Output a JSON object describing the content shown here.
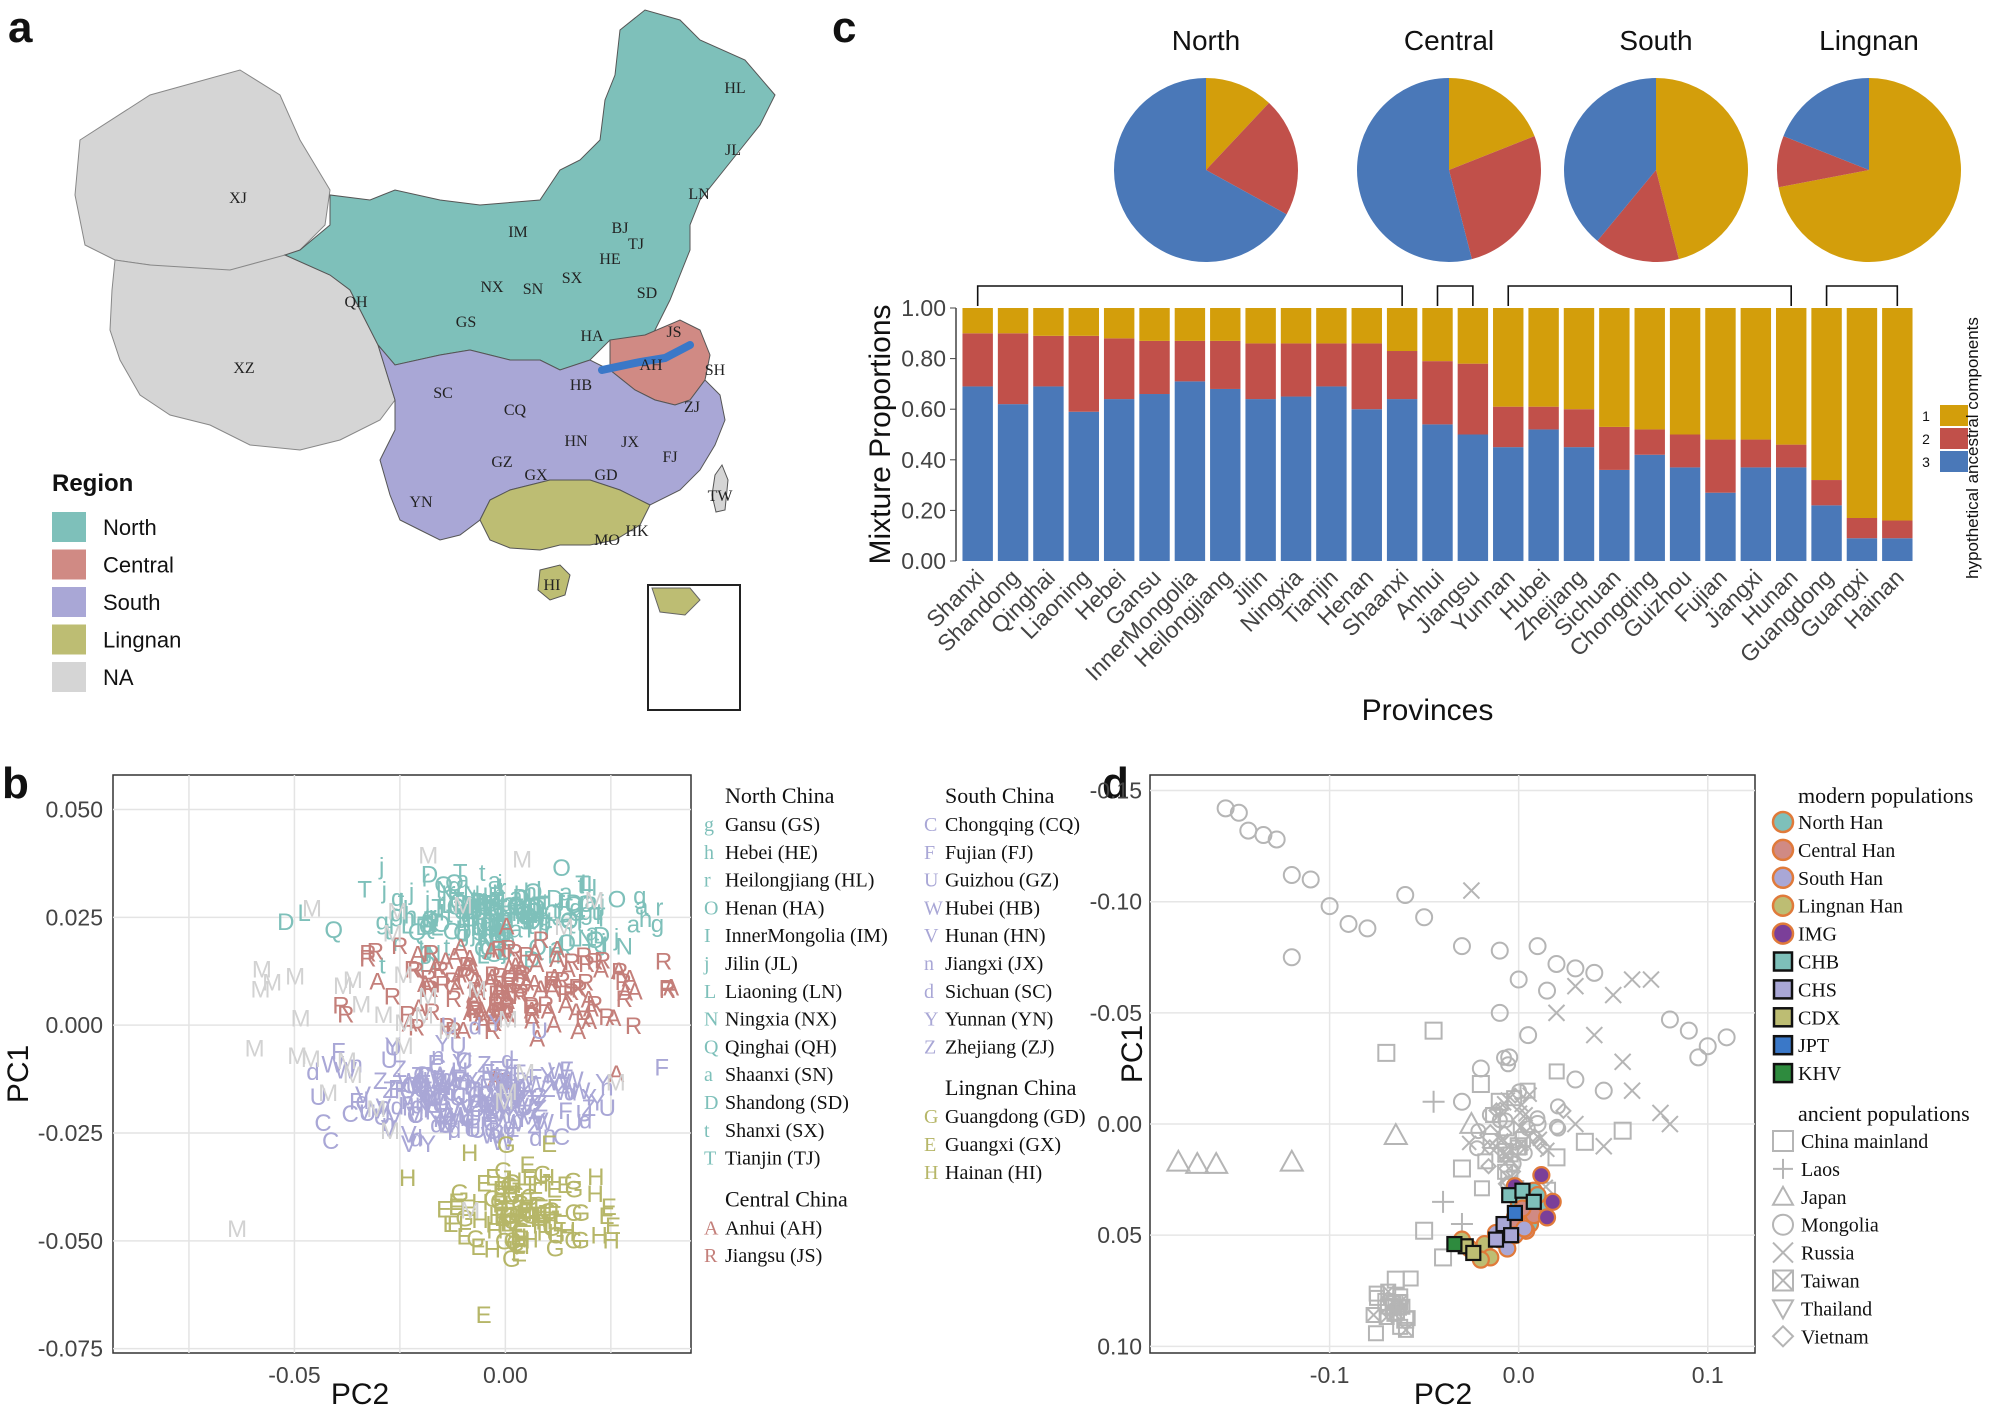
{
  "panel_letters": [
    "a",
    "b",
    "c",
    "d"
  ],
  "map": {
    "legend_title": "Region",
    "legend_items": [
      {
        "label": "North",
        "color": "#7ec0ba"
      },
      {
        "label": "Central",
        "color": "#d08a84"
      },
      {
        "label": "South",
        "color": "#a9a7d6"
      },
      {
        "label": "Lingnan",
        "color": "#bdbd73"
      },
      {
        "label": "NA",
        "color": "#d5d5d5"
      }
    ],
    "province_labels": [
      "XJ",
      "XZ",
      "QH",
      "IM",
      "HL",
      "JL",
      "LN",
      "BJ",
      "TJ",
      "HE",
      "NX",
      "SN",
      "SX",
      "SD",
      "GS",
      "HA",
      "JS",
      "AH",
      "SH",
      "SC",
      "CQ",
      "HB",
      "ZJ",
      "GZ",
      "HN",
      "JX",
      "FJ",
      "YN",
      "GX",
      "GD",
      "HK",
      "MO",
      "TW",
      "HI"
    ],
    "border_color": "#3a78c8"
  },
  "chart_data": [
    {
      "panel": "c-pies",
      "type": "pie",
      "titles": [
        "North",
        "Central",
        "South",
        "Lingnan"
      ],
      "series_names": [
        "1",
        "2",
        "3"
      ],
      "colors": [
        "#d39e0b",
        "#c1504a",
        "#4a78b8"
      ],
      "values": [
        [
          0.12,
          0.21,
          0.67
        ],
        [
          0.19,
          0.27,
          0.54
        ],
        [
          0.46,
          0.15,
          0.39
        ],
        [
          0.72,
          0.09,
          0.19
        ]
      ]
    },
    {
      "panel": "c-bars",
      "type": "bar",
      "stacked": true,
      "xlabel": "Provinces",
      "ylabel": "Mixture Proportions",
      "ylim": [
        0,
        1
      ],
      "yticks": [
        "0.00",
        "0.20",
        "0.40",
        "0.60",
        "0.80",
        "1.00"
      ],
      "legend_title": "hypothetical ancestral components",
      "legend_labels": [
        "1",
        "2",
        "3"
      ],
      "categories": [
        "Shanxi",
        "Shandong",
        "Qinghai",
        "Liaoning",
        "Hebei",
        "Gansu",
        "InnerMongolia",
        "Heilongjiang",
        "Jilin",
        "Ningxia",
        "Tianjin",
        "Henan",
        "Shaanxi",
        "Anhui",
        "Jiangsu",
        "Yunnan",
        "Hubei",
        "Zhejiang",
        "Sichuan",
        "Chongqing",
        "Guizhou",
        "Fujian",
        "Jiangxi",
        "Hunan",
        "Guangdong",
        "Guangxi",
        "Hainan"
      ],
      "series": [
        {
          "name": "3",
          "color": "#4a78b8",
          "values": [
            0.69,
            0.62,
            0.69,
            0.59,
            0.64,
            0.66,
            0.71,
            0.68,
            0.64,
            0.65,
            0.69,
            0.6,
            0.64,
            0.54,
            0.5,
            0.45,
            0.52,
            0.45,
            0.36,
            0.42,
            0.37,
            0.27,
            0.37,
            0.37,
            0.22,
            0.09,
            0.09
          ]
        },
        {
          "name": "2",
          "color": "#c1504a",
          "values": [
            0.21,
            0.28,
            0.2,
            0.3,
            0.24,
            0.21,
            0.16,
            0.19,
            0.22,
            0.21,
            0.17,
            0.26,
            0.19,
            0.25,
            0.28,
            0.16,
            0.09,
            0.15,
            0.17,
            0.1,
            0.13,
            0.21,
            0.11,
            0.09,
            0.1,
            0.08,
            0.07
          ]
        },
        {
          "name": "1",
          "color": "#d39e0b",
          "values": [
            0.1,
            0.1,
            0.11,
            0.11,
            0.12,
            0.13,
            0.13,
            0.13,
            0.14,
            0.14,
            0.14,
            0.14,
            0.17,
            0.21,
            0.22,
            0.39,
            0.39,
            0.4,
            0.47,
            0.48,
            0.5,
            0.52,
            0.52,
            0.54,
            0.68,
            0.83,
            0.84
          ]
        }
      ],
      "group_brackets": [
        [
          0,
          12
        ],
        [
          13,
          14
        ],
        [
          15,
          23
        ],
        [
          24,
          26
        ]
      ]
    },
    {
      "panel": "b",
      "type": "scatter",
      "xlabel": "PC2",
      "ylabel": "PC1",
      "xticks": [
        "-0.05",
        "0.00"
      ],
      "yticks": [
        "0.050",
        "0.025",
        "0.000",
        "-0.025",
        "-0.050",
        "-0.075"
      ],
      "xlim": [
        -0.093,
        0.044
      ],
      "ylim": [
        -0.076,
        0.058
      ],
      "clusters": [
        {
          "group": "North",
          "color": "#7ec0ba",
          "letters": "ghrOIjLNQaDtT",
          "cx": 0.0,
          "cy": 0.024,
          "sx": 0.028,
          "sy": 0.007,
          "n": 240
        },
        {
          "group": "Central",
          "color": "#c47f7a",
          "letters": "AR",
          "cx": 0.002,
          "cy": 0.006,
          "sx": 0.03,
          "sy": 0.01,
          "n": 150
        },
        {
          "group": "South",
          "color": "#a9a7d6",
          "letters": "CFUWVndYZ",
          "cx": -0.008,
          "cy": -0.018,
          "sx": 0.03,
          "sy": 0.009,
          "n": 230
        },
        {
          "group": "Lingnan",
          "color": "#b6b668",
          "letters": "GEH",
          "cx": 0.005,
          "cy": -0.045,
          "sx": 0.018,
          "sy": 0.009,
          "n": 110
        },
        {
          "group": "Mongolian",
          "color": "#d2d2d2",
          "letters": "M",
          "cx": -0.03,
          "cy": 0.0,
          "sx": 0.04,
          "sy": 0.035,
          "n": 40
        }
      ],
      "legend": [
        {
          "title": "North China",
          "color": "#7ec0ba",
          "items": [
            [
              "g",
              "Gansu (GS)"
            ],
            [
              "h",
              "Hebei (HE)"
            ],
            [
              "r",
              "Heilongjiang (HL)"
            ],
            [
              "O",
              "Henan (HA)"
            ],
            [
              "I",
              "InnerMongolia (IM)"
            ],
            [
              "j",
              "Jilin (JL)"
            ],
            [
              "L",
              "Liaoning (LN)"
            ],
            [
              "N",
              "Ningxia (NX)"
            ],
            [
              "Q",
              "Qinghai (QH)"
            ],
            [
              "a",
              "Shaanxi (SN)"
            ],
            [
              "D",
              "Shandong (SD)"
            ],
            [
              "t",
              "Shanxi (SX)"
            ],
            [
              "T",
              "Tianjin (TJ)"
            ]
          ]
        },
        {
          "title": "Central China",
          "color": "#c47f7a",
          "items": [
            [
              "A",
              "Anhui (AH)"
            ],
            [
              "R",
              "Jiangsu (JS)"
            ]
          ]
        },
        {
          "title": "South China",
          "color": "#a9a7d6",
          "items": [
            [
              "C",
              "Chongqing (CQ)"
            ],
            [
              "F",
              "Fujian (FJ)"
            ],
            [
              "U",
              "Guizhou (GZ)"
            ],
            [
              "W",
              "Hubei (HB)"
            ],
            [
              "V",
              "Hunan (HN)"
            ],
            [
              "n",
              "Jiangxi (JX)"
            ],
            [
              "d",
              "Sichuan (SC)"
            ],
            [
              "Y",
              "Yunnan (YN)"
            ],
            [
              "Z",
              "Zhejiang (ZJ)"
            ]
          ]
        },
        {
          "title": "Lingnan China",
          "color": "#b6b668",
          "items": [
            [
              "G",
              "Guangdong (GD)"
            ],
            [
              "E",
              "Guangxi (GX)"
            ],
            [
              "H",
              "Hainan (HI)"
            ]
          ]
        }
      ]
    },
    {
      "panel": "d",
      "type": "scatter",
      "xlabel": "PC2",
      "ylabel": "PC1",
      "xticks": [
        "-0.1",
        "0.0",
        "0.1"
      ],
      "yticks": [
        "-0.15",
        "-0.10",
        "-0.05",
        "0.00",
        "0.05",
        "0.10"
      ],
      "xlim": [
        -0.195,
        0.125
      ],
      "ylim_top_to_bottom": [
        -0.157,
        0.103
      ],
      "modern_title": "modern populations",
      "modern": [
        {
          "label": "North Han",
          "shape": "circle",
          "fill": "#7ec0ba",
          "stroke": "#e07a3a"
        },
        {
          "label": "Central Han",
          "shape": "circle",
          "fill": "#d08a84",
          "stroke": "#e07a3a"
        },
        {
          "label": "South Han",
          "shape": "circle",
          "fill": "#a9a7d6",
          "stroke": "#e07a3a"
        },
        {
          "label": "Lingnan Han",
          "shape": "circle",
          "fill": "#bdbd73",
          "stroke": "#e07a3a"
        },
        {
          "label": "IMG",
          "shape": "circle",
          "fill": "#7b3f99",
          "stroke": "#e07a3a"
        },
        {
          "label": "CHB",
          "shape": "square",
          "fill": "#7ec0ba",
          "stroke": "#111111"
        },
        {
          "label": "CHS",
          "shape": "square",
          "fill": "#a9a7d6",
          "stroke": "#111111"
        },
        {
          "label": "CDX",
          "shape": "square",
          "fill": "#bdbd73",
          "stroke": "#111111"
        },
        {
          "label": "JPT",
          "shape": "square",
          "fill": "#3a78c8",
          "stroke": "#111111"
        },
        {
          "label": "KHV",
          "shape": "square",
          "fill": "#2e8b3e",
          "stroke": "#111111"
        }
      ],
      "ancient_title": "ancient populations",
      "ancient": [
        {
          "label": "China mainland",
          "shape": "square"
        },
        {
          "label": "Laos",
          "shape": "plus"
        },
        {
          "label": "Japan",
          "shape": "triangle"
        },
        {
          "label": "Mongolia",
          "shape": "circle"
        },
        {
          "label": "Russia",
          "shape": "cross"
        },
        {
          "label": "Taiwan",
          "shape": "boxx"
        },
        {
          "label": "Thailand",
          "shape": "downtri"
        },
        {
          "label": "Vietnam",
          "shape": "diamond"
        }
      ],
      "mongolia_points": [
        [
          -0.155,
          -0.142
        ],
        [
          -0.148,
          -0.14
        ],
        [
          -0.143,
          -0.132
        ],
        [
          -0.135,
          -0.13
        ],
        [
          -0.128,
          -0.128
        ],
        [
          -0.12,
          -0.112
        ],
        [
          -0.11,
          -0.11
        ],
        [
          -0.1,
          -0.098
        ],
        [
          -0.09,
          -0.09
        ],
        [
          -0.08,
          -0.088
        ],
        [
          -0.12,
          -0.075
        ],
        [
          -0.06,
          -0.103
        ],
        [
          -0.05,
          -0.093
        ],
        [
          -0.03,
          -0.08
        ],
        [
          -0.01,
          -0.078
        ],
        [
          0.01,
          -0.08
        ],
        [
          0.02,
          -0.072
        ],
        [
          0.03,
          -0.07
        ],
        [
          0.04,
          -0.068
        ],
        [
          0.08,
          -0.047
        ],
        [
          0.09,
          -0.042
        ],
        [
          0.1,
          -0.035
        ],
        [
          0.11,
          -0.039
        ],
        [
          0.095,
          -0.03
        ],
        [
          0.0,
          -0.065
        ],
        [
          0.015,
          -0.06
        ],
        [
          -0.01,
          -0.05
        ],
        [
          0.005,
          -0.04
        ],
        [
          -0.005,
          -0.03
        ],
        [
          -0.02,
          -0.025
        ],
        [
          0.03,
          -0.02
        ],
        [
          0.045,
          -0.015
        ],
        [
          -0.03,
          -0.01
        ],
        [
          0.01,
          0.0
        ]
      ],
      "japan_points": [
        [
          -0.18,
          0.017
        ],
        [
          -0.17,
          0.018
        ],
        [
          -0.16,
          0.018
        ],
        [
          -0.12,
          0.017
        ],
        [
          -0.065,
          0.005
        ],
        [
          -0.025,
          0.0
        ]
      ],
      "square_points": [
        [
          -0.07,
          -0.032
        ],
        [
          -0.045,
          -0.042
        ],
        [
          -0.02,
          -0.018
        ],
        [
          -0.01,
          -0.01
        ],
        [
          0.0,
          0.01
        ],
        [
          0.02,
          0.015
        ],
        [
          0.035,
          0.008
        ],
        [
          0.055,
          0.003
        ],
        [
          -0.005,
          0.025
        ],
        [
          0.015,
          0.03
        ],
        [
          -0.03,
          0.02
        ],
        [
          -0.05,
          0.048
        ],
        [
          -0.04,
          0.06
        ],
        [
          -0.065,
          0.07
        ],
        [
          -0.07,
          0.08
        ],
        [
          -0.06,
          0.088
        ]
      ],
      "cross_points": [
        [
          -0.025,
          -0.105
        ],
        [
          0.03,
          -0.062
        ],
        [
          0.05,
          -0.058
        ],
        [
          0.06,
          -0.065
        ],
        [
          0.07,
          -0.065
        ],
        [
          0.02,
          -0.05
        ],
        [
          0.04,
          -0.04
        ],
        [
          0.055,
          -0.028
        ],
        [
          0.06,
          -0.015
        ],
        [
          0.075,
          -0.005
        ],
        [
          0.08,
          0.0
        ],
        [
          0.045,
          0.01
        ],
        [
          0.03,
          0.0
        ]
      ],
      "plus_points": [
        [
          -0.045,
          -0.01
        ],
        [
          -0.04,
          0.035
        ],
        [
          -0.03,
          0.045
        ]
      ],
      "diamond_points": [
        [
          -0.01,
          0.01
        ],
        [
          -0.005,
          0.02
        ],
        [
          -0.015,
          0.005
        ]
      ],
      "modern_points": [
        {
          "idx": 0,
          "pts": [
            [
              0.0,
              0.035
            ],
            [
              0.008,
              0.03
            ],
            [
              0.012,
              0.037
            ],
            [
              -0.002,
              0.042
            ],
            [
              0.006,
              0.045
            ],
            [
              0.01,
              0.032
            ]
          ]
        },
        {
          "idx": 1,
          "pts": [
            [
              -0.003,
              0.044
            ],
            [
              0.004,
              0.048
            ],
            [
              -0.008,
              0.05
            ],
            [
              0.008,
              0.041
            ],
            [
              0.002,
              0.038
            ]
          ]
        },
        {
          "idx": 2,
          "pts": [
            [
              -0.01,
              0.052
            ],
            [
              -0.006,
              0.056
            ],
            [
              -0.002,
              0.05
            ],
            [
              0.003,
              0.047
            ],
            [
              -0.012,
              0.049
            ]
          ]
        },
        {
          "idx": 3,
          "pts": [
            [
              -0.022,
              0.058
            ],
            [
              -0.018,
              0.054
            ],
            [
              -0.026,
              0.056
            ],
            [
              -0.015,
              0.06
            ],
            [
              -0.03,
              0.052
            ],
            [
              -0.02,
              0.061
            ]
          ]
        },
        {
          "idx": 4,
          "pts": [
            [
              0.012,
              0.023
            ],
            [
              0.015,
              0.042
            ],
            [
              0.018,
              0.035
            ],
            [
              -0.002,
              0.028
            ]
          ]
        },
        {
          "idx": 5,
          "pts": [
            [
              -0.005,
              0.032
            ],
            [
              0.002,
              0.03
            ],
            [
              0.008,
              0.035
            ]
          ]
        },
        {
          "idx": 6,
          "pts": [
            [
              -0.008,
              0.045
            ],
            [
              -0.004,
              0.05
            ],
            [
              -0.012,
              0.052
            ]
          ]
        },
        {
          "idx": 7,
          "pts": [
            [
              -0.028,
              0.055
            ],
            [
              -0.024,
              0.058
            ]
          ]
        },
        {
          "idx": 8,
          "pts": [
            [
              -0.002,
              0.04
            ]
          ]
        },
        {
          "idx": 9,
          "pts": [
            [
              -0.034,
              0.054
            ]
          ]
        }
      ]
    }
  ]
}
